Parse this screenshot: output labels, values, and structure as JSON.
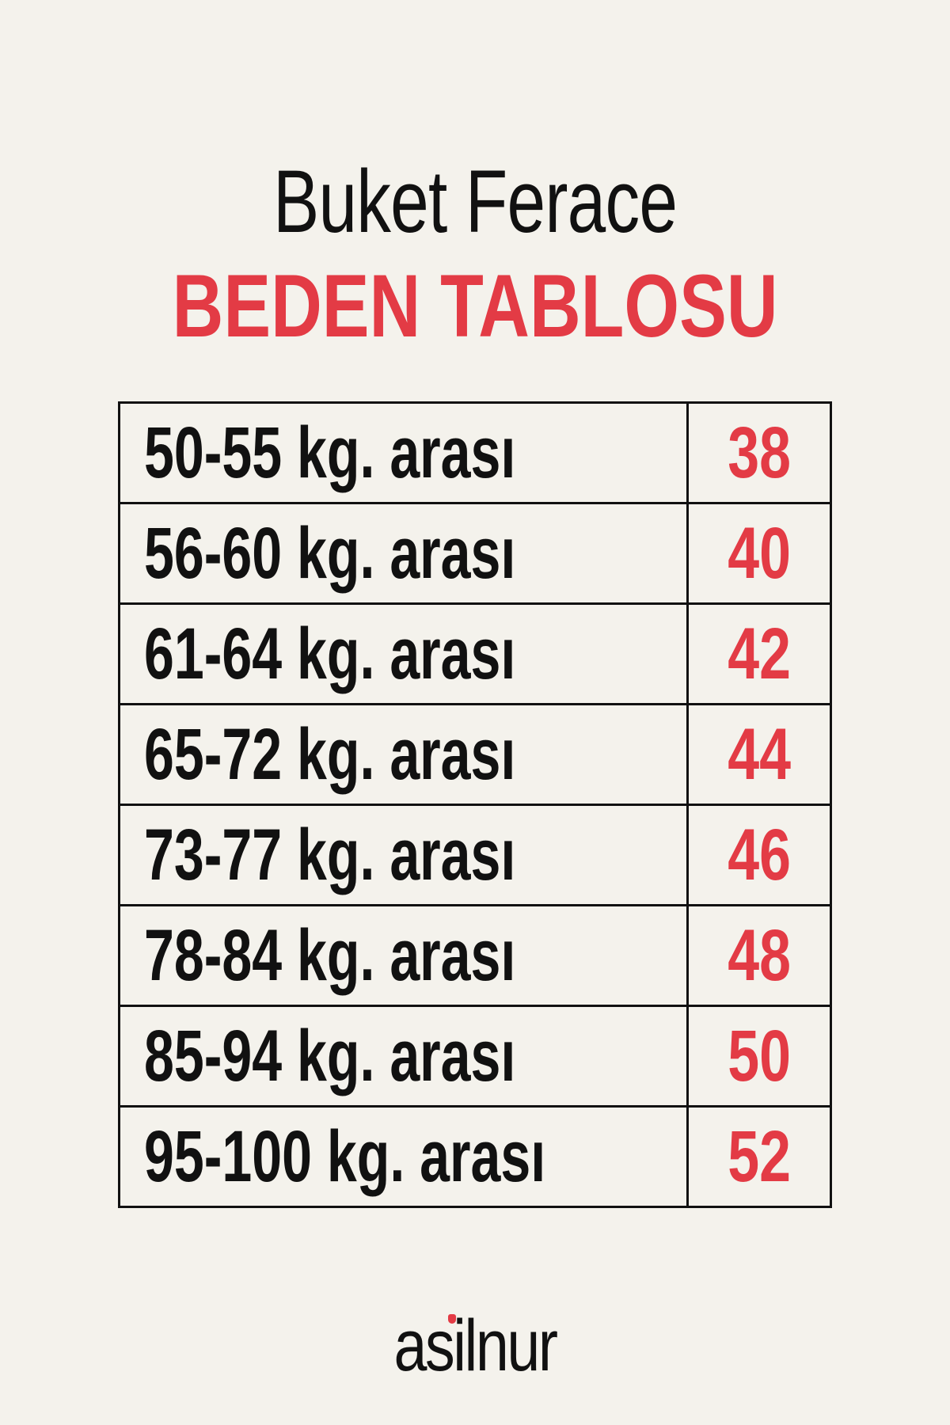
{
  "header": {
    "title": "Buket Ferace",
    "subtitle": "BEDEN TABLOSU"
  },
  "size_table": {
    "rows": [
      {
        "weight": "50-55 kg. arası",
        "size": "38"
      },
      {
        "weight": "56-60 kg. arası",
        "size": "40"
      },
      {
        "weight": "61-64 kg. arası",
        "size": "42"
      },
      {
        "weight": "65-72 kg. arası",
        "size": "44"
      },
      {
        "weight": "73-77 kg. arası",
        "size": "46"
      },
      {
        "weight": "78-84 kg. arası",
        "size": "48"
      },
      {
        "weight": "85-94 kg. arası",
        "size": "50"
      },
      {
        "weight": "95-100 kg. arası",
        "size": "52"
      }
    ]
  },
  "brand": {
    "logo_text": "asilnur"
  },
  "colors": {
    "accent": "#e33b45",
    "background": "#f4f2ec",
    "text": "#111111"
  }
}
